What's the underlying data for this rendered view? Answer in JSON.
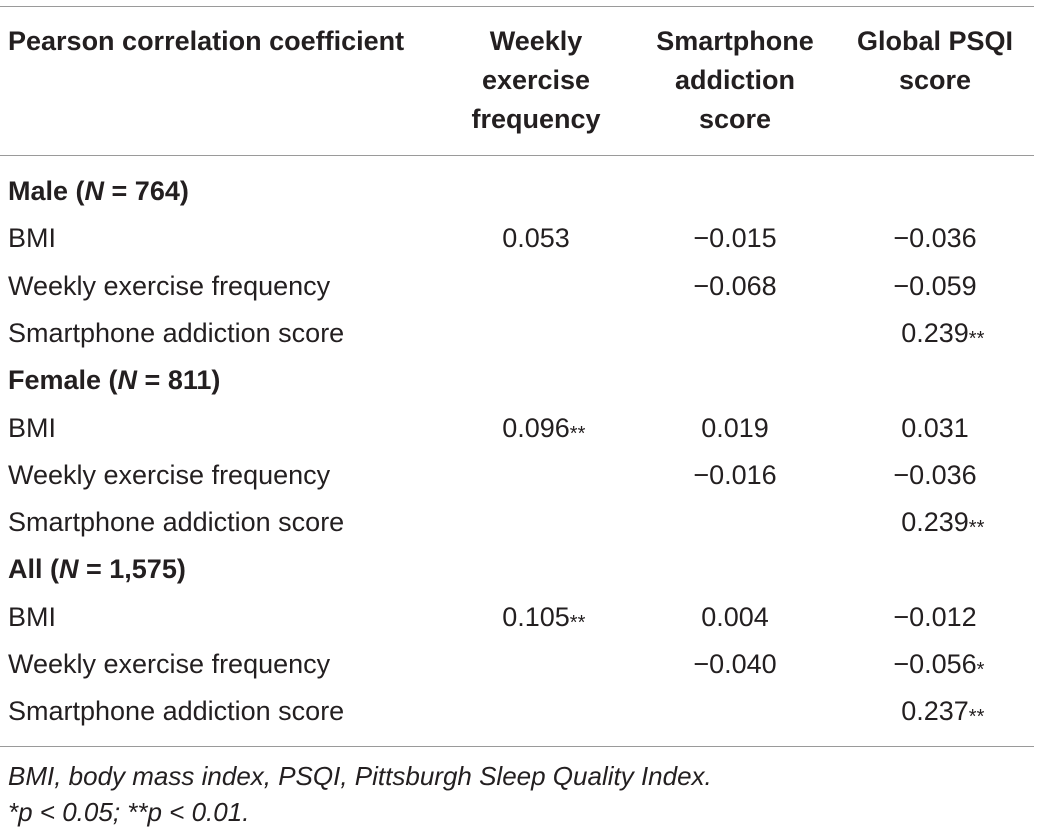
{
  "table": {
    "headers": [
      [
        "Pearson correlation coefficient"
      ],
      [
        "Weekly",
        "exercise",
        "frequency"
      ],
      [
        "Smartphone",
        "addiction",
        "score"
      ],
      [
        "Global PSQI",
        "score"
      ]
    ],
    "groups": [
      {
        "title": "Male (",
        "n_symbol": "N",
        "n_text": " = 764)",
        "rows": [
          {
            "label": "BMI",
            "values": [
              [
                "0.053",
                ""
              ],
              [
                "−0.015",
                ""
              ],
              [
                "−0.036",
                ""
              ]
            ]
          },
          {
            "label": "Weekly exercise frequency",
            "values": [
              [
                "",
                ""
              ],
              [
                "−0.068",
                ""
              ],
              [
                "−0.059",
                ""
              ]
            ]
          },
          {
            "label": "Smartphone addiction score",
            "values": [
              [
                "",
                ""
              ],
              [
                "",
                ""
              ],
              [
                "0.239",
                "**"
              ]
            ]
          }
        ]
      },
      {
        "title": "Female (",
        "n_symbol": "N",
        "n_text": " = 811)",
        "rows": [
          {
            "label": "BMI",
            "values": [
              [
                "0.096",
                "**"
              ],
              [
                "0.019",
                ""
              ],
              [
                "0.031",
                ""
              ]
            ]
          },
          {
            "label": "Weekly exercise frequency",
            "values": [
              [
                "",
                ""
              ],
              [
                "−0.016",
                ""
              ],
              [
                "−0.036",
                ""
              ]
            ]
          },
          {
            "label": "Smartphone addiction score",
            "values": [
              [
                "",
                ""
              ],
              [
                "",
                ""
              ],
              [
                "0.239",
                "**"
              ]
            ]
          }
        ]
      },
      {
        "title": "All (",
        "n_symbol": "N",
        "n_text": " = 1,575)",
        "rows": [
          {
            "label": "BMI",
            "values": [
              [
                "0.105",
                "**"
              ],
              [
                "0.004",
                ""
              ],
              [
                "−0.012",
                ""
              ]
            ]
          },
          {
            "label": "Weekly exercise frequency",
            "values": [
              [
                "",
                ""
              ],
              [
                "−0.040",
                ""
              ],
              [
                "−0.056",
                "*"
              ]
            ]
          },
          {
            "label": "Smartphone addiction score",
            "values": [
              [
                "",
                ""
              ],
              [
                "",
                ""
              ],
              [
                "0.237",
                "**"
              ]
            ]
          }
        ]
      }
    ]
  },
  "footnotes": [
    "BMI, body mass index, PSQI, Pittsburgh Sleep Quality Index.",
    "*p < 0.05; **p < 0.01."
  ]
}
